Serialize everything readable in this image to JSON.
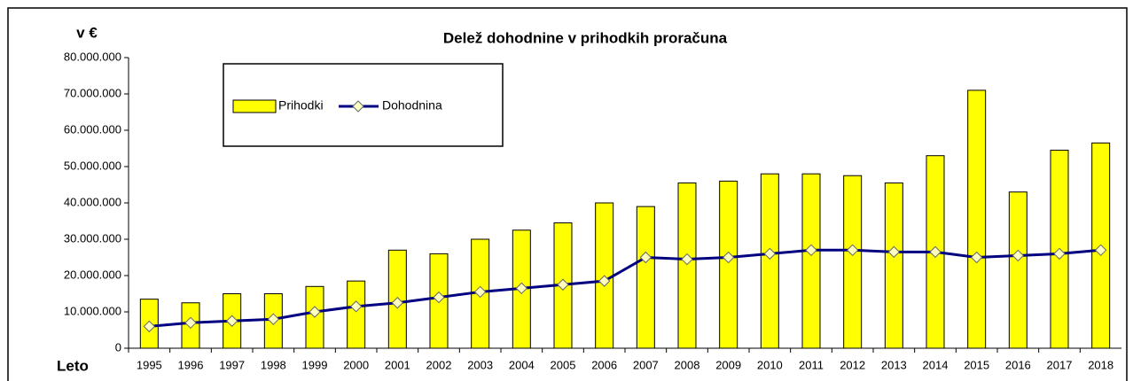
{
  "chart_data": {
    "type": "bar_line",
    "title": "Delež dohodnine v prihodkih proračuna",
    "y_label": "v €",
    "x_label": "Leto",
    "categories": [
      "1995",
      "1996",
      "1997",
      "1998",
      "1999",
      "2000",
      "2001",
      "2002",
      "2003",
      "2004",
      "2005",
      "2006",
      "2007",
      "2008",
      "2009",
      "2010",
      "2011",
      "2012",
      "2013",
      "2014",
      "2015",
      "2016",
      "2017",
      "2018"
    ],
    "series": [
      {
        "name": "Prihodki",
        "type": "bar",
        "color": "#ffff00",
        "values": [
          13500000,
          12500000,
          15000000,
          15000000,
          17000000,
          18500000,
          27000000,
          26000000,
          30000000,
          32500000,
          34500000,
          40000000,
          39000000,
          45500000,
          46000000,
          48000000,
          48000000,
          47500000,
          45500000,
          53000000,
          71000000,
          43000000,
          54500000,
          56500000
        ]
      },
      {
        "name": "Dohodnina",
        "type": "line",
        "color": "#000080",
        "values": [
          6000000,
          7000000,
          7500000,
          8000000,
          10000000,
          11500000,
          12500000,
          14000000,
          15500000,
          16500000,
          17500000,
          18500000,
          25000000,
          24500000,
          25000000,
          26000000,
          27000000,
          27000000,
          26500000,
          26500000,
          25000000,
          25500000,
          26000000,
          27000000
        ]
      }
    ],
    "ylim": [
      0,
      80000000
    ],
    "yticks": [
      0,
      {
        "value": 10000000,
        "label": "10.000.000"
      },
      {
        "value": 20000000,
        "label": "20.000.000"
      },
      {
        "value": 30000000,
        "label": "30.000.000"
      },
      {
        "value": 40000000,
        "label": "40.000.000"
      },
      {
        "value": 50000000,
        "label": "50.000.000"
      },
      {
        "value": 60000000,
        "label": "60.000.000"
      },
      {
        "value": 70000000,
        "label": "70.000.000"
      },
      {
        "value": 80000000,
        "label": "80.000.000"
      }
    ],
    "grid": false
  }
}
